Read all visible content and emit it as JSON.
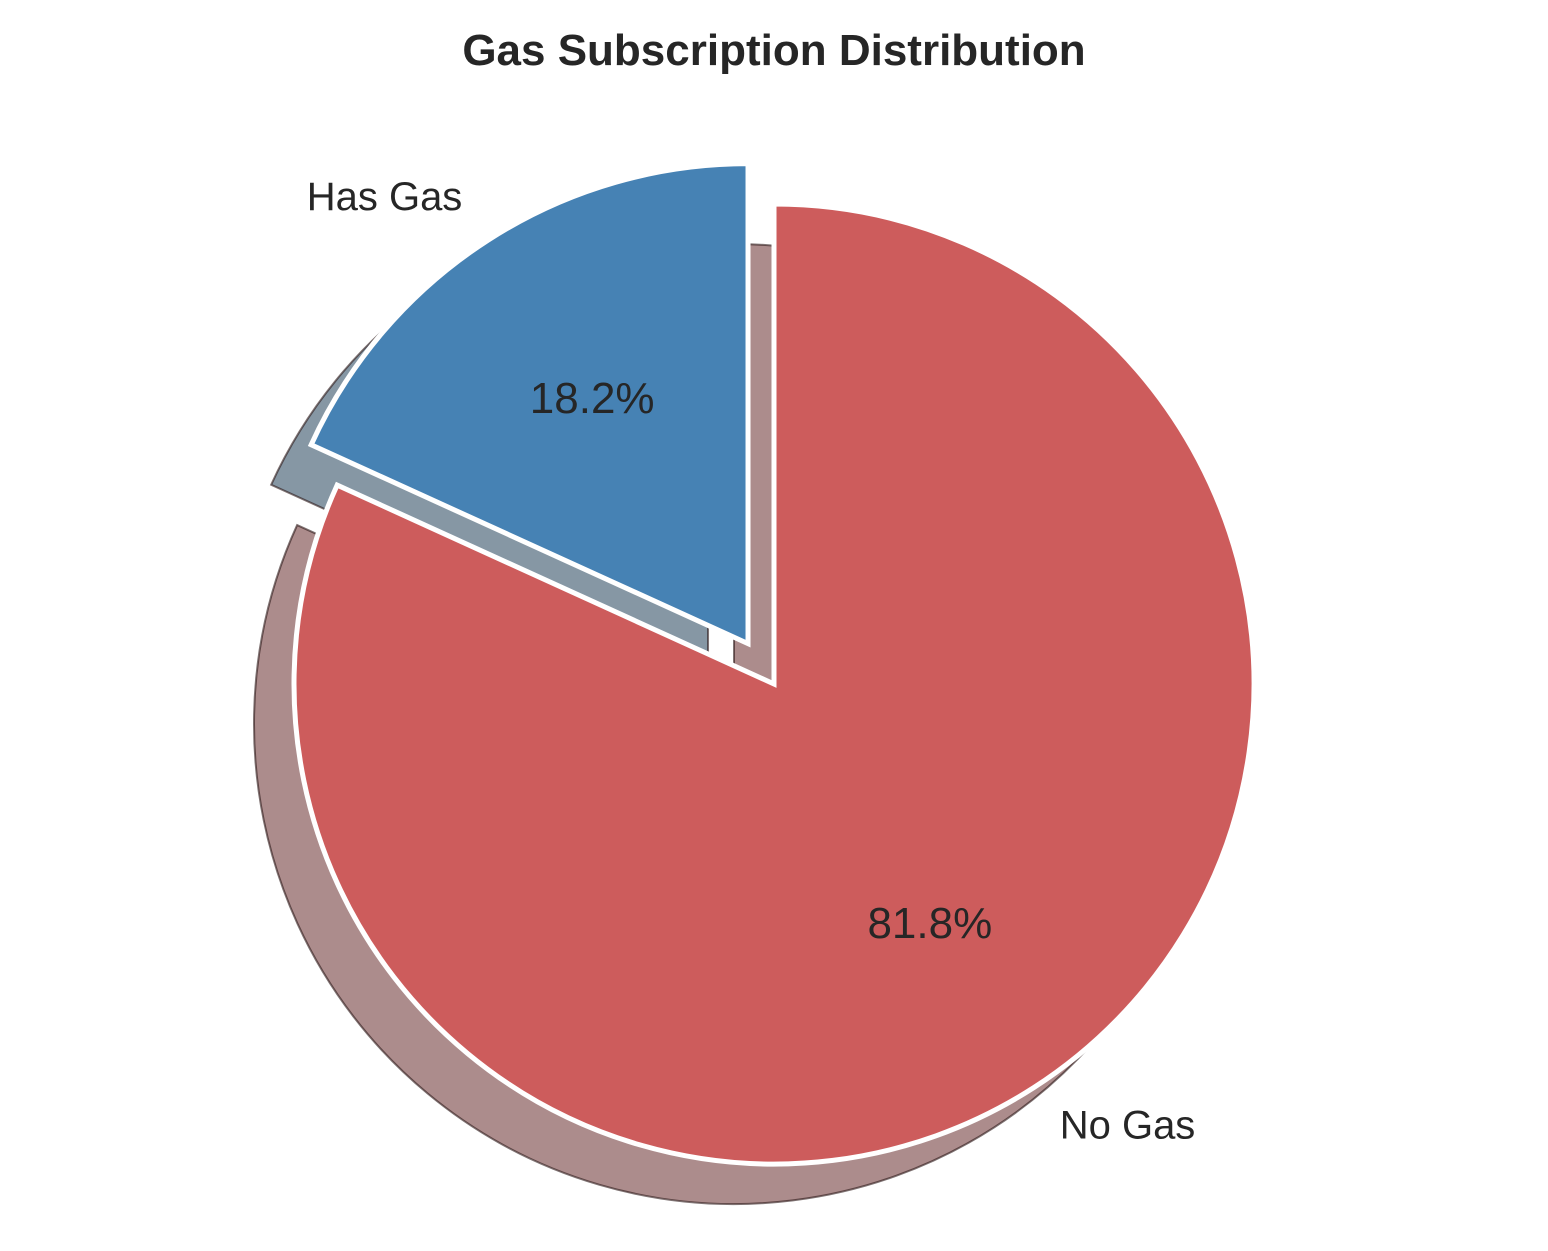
{
  "chart_data": {
    "type": "pie",
    "title": "Gas Subscription Distribution",
    "start_angle_deg": 90,
    "direction": "clockwise",
    "shadow": true,
    "slices": [
      {
        "label": "No Gas",
        "value": 81.8,
        "pct_label": "81.8%",
        "color": "#cd5c5c",
        "explode": 0
      },
      {
        "label": "Has Gas",
        "value": 18.2,
        "pct_label": "18.2%",
        "color": "#4682b4",
        "explode": 0.1
      }
    ]
  }
}
